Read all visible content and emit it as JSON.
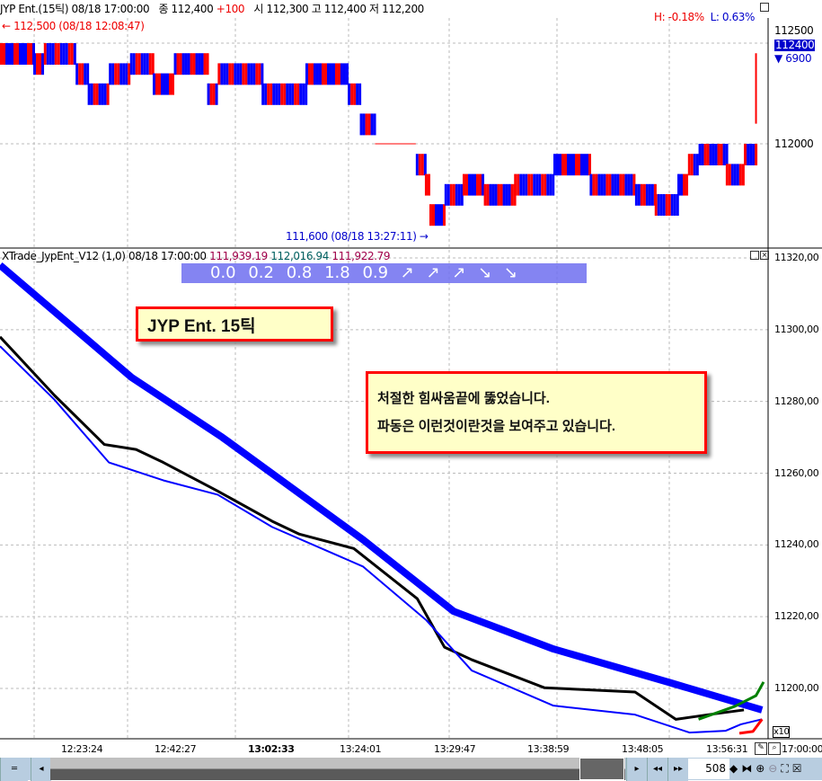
{
  "header": {
    "symbol": "JYP Ent.(15틱)",
    "datetime": "08/18 17:00:00",
    "close_label": "종",
    "close": "112,400",
    "change": "+100",
    "open_label": "시",
    "open": "112,300",
    "high_label": "고",
    "high": "112,400",
    "low_label": "저",
    "low": "112,200",
    "h_pct": "H: -0.18%",
    "l_pct": "L: 0.63%"
  },
  "price_panel": {
    "high_marker": "← 112,500 (08/18 12:08:47)",
    "low_marker": "111,600 (08/18 13:27:11)  →",
    "axis": [
      "112500",
      "112000"
    ],
    "current_price": "112400",
    "volume": "▼ 6900",
    "price_path": [
      [
        0,
        112500
      ],
      [
        22,
        112450
      ],
      [
        29,
        112500
      ],
      [
        50,
        112400
      ],
      [
        58,
        112300
      ],
      [
        72,
        112400
      ],
      [
        86,
        112450
      ],
      [
        101,
        112350
      ],
      [
        115,
        112450
      ],
      [
        137,
        112300
      ],
      [
        144,
        112400
      ],
      [
        173,
        112300
      ],
      [
        202,
        112400
      ],
      [
        230,
        112300
      ],
      [
        238,
        112150
      ],
      [
        248,
        112000
      ],
      [
        275,
        111950
      ],
      [
        281,
        111850
      ],
      [
        284,
        111700
      ],
      [
        294,
        111800
      ],
      [
        306,
        111850
      ],
      [
        320,
        111800
      ],
      [
        340,
        111850
      ],
      [
        366,
        111950
      ],
      [
        390,
        111850
      ],
      [
        420,
        111800
      ],
      [
        433,
        111750
      ],
      [
        448,
        111850
      ],
      [
        455,
        111950
      ],
      [
        462,
        112000
      ],
      [
        480,
        111900
      ],
      [
        492,
        112000
      ],
      [
        500,
        112400
      ]
    ],
    "colors": {
      "up": "#ff0000",
      "down": "#0000ff"
    }
  },
  "indicator_panel": {
    "title": "XTrade_JypEnt_V12  (1,0) 08/18 17:00:00",
    "value1": "111,939.19",
    "value2": "112,016.94",
    "value3": "111,922.79",
    "banner": [
      "0.0",
      "0.2",
      "0.8",
      "1.8",
      "0.9",
      "↗",
      "↗",
      "↗",
      "↘",
      "↘"
    ],
    "axis": [
      "11320,00",
      "11300,00",
      "11280,00",
      "11260,00",
      "11240,00",
      "11220,00",
      "11200,00"
    ],
    "multiplier": "x10",
    "note1": "JYP Ent. 15틱",
    "note2_line1": "처절한 힘싸움끝에 뚫었습니다.",
    "note2_line2": "파동은 이런것이란것을 보여주고 있습니다."
  },
  "chart_data": {
    "type": "line",
    "x_unit": "bar index",
    "series": [
      {
        "color": "#0000ff",
        "points": [
          [
            0,
            11318
          ],
          [
            87,
            11286.7
          ],
          [
            147,
            11270
          ],
          [
            240,
            11241.5
          ],
          [
            300,
            11221.5
          ],
          [
            366,
            11211
          ],
          [
            444,
            11201.5
          ],
          [
            504,
            11194
          ]
        ]
      },
      {
        "color": "#000000",
        "points": [
          [
            0,
            11298
          ],
          [
            36,
            11281.7
          ],
          [
            69,
            11268
          ],
          [
            90,
            11266.6
          ],
          [
            108,
            11263
          ],
          [
            144,
            11255
          ],
          [
            180,
            11246.6
          ],
          [
            198,
            11243
          ],
          [
            234,
            11239
          ],
          [
            276,
            11225
          ],
          [
            294,
            11211.5
          ],
          [
            312,
            11208
          ],
          [
            360,
            11200.2
          ],
          [
            420,
            11199
          ],
          [
            447,
            11191.4
          ],
          [
            474,
            11193
          ],
          [
            492,
            11194
          ]
        ]
      },
      {
        "color": "#008000",
        "points": [
          [
            462,
            11191.4
          ],
          [
            486,
            11195
          ],
          [
            500,
            11198
          ],
          [
            505,
            11201.8
          ]
        ]
      },
      {
        "color": "#0000ff",
        "points": [
          [
            0,
            11295.4
          ],
          [
            36,
            11280.5
          ],
          [
            72,
            11263
          ],
          [
            108,
            11258
          ],
          [
            144,
            11254
          ],
          [
            180,
            11245
          ],
          [
            240,
            11234
          ],
          [
            282,
            11219
          ],
          [
            312,
            11205
          ],
          [
            366,
            11195.2
          ],
          [
            420,
            11192.7
          ],
          [
            456,
            11187.7
          ],
          [
            480,
            11188.2
          ],
          [
            490,
            11190
          ],
          [
            504,
            11191.4
          ]
        ]
      },
      {
        "color": "#ff0000",
        "points": [
          [
            489,
            11187.5
          ],
          [
            498,
            11188
          ],
          [
            504,
            11191.4
          ]
        ]
      }
    ]
  },
  "time_axis": [
    "12:23:24",
    "12:42:27",
    "13:02:33",
    "13:24:01",
    "13:29:47",
    "13:38:59",
    "13:48:05",
    "13:56:31",
    "17:00:00"
  ],
  "toolbar": {
    "count": "508"
  }
}
